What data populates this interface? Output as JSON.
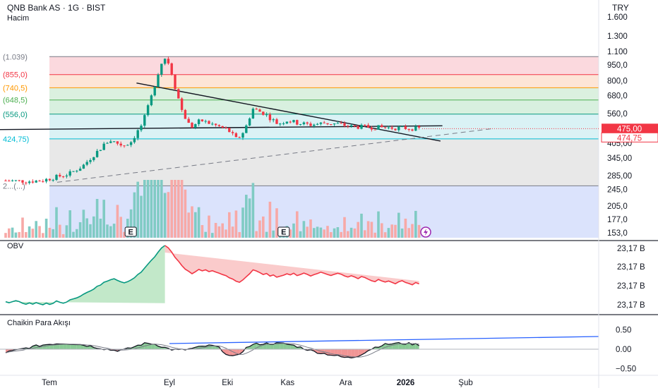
{
  "header": {
    "symbol_line": "QNB Bank AS · 1G · BIST",
    "volume_label": "Hacim",
    "currency": "TRY"
  },
  "price_axis": {
    "ticks": [
      {
        "label": "1.600",
        "value": 1600
      },
      {
        "label": "1.300",
        "value": 1300
      },
      {
        "label": "1.100",
        "value": 1100
      },
      {
        "label": "950,0",
        "value": 950
      },
      {
        "label": "800,0",
        "value": 800
      },
      {
        "label": "680,0",
        "value": 680
      },
      {
        "label": "560,0",
        "value": 560
      },
      {
        "label": "405,00",
        "value": 405
      },
      {
        "label": "345,00",
        "value": 345
      },
      {
        "label": "285,00",
        "value": 285
      },
      {
        "label": "245,0",
        "value": 245
      },
      {
        "label": "205,0",
        "value": 205
      },
      {
        "label": "177,0",
        "value": 177
      },
      {
        "label": "153,0",
        "value": 153
      }
    ],
    "current_price_label": "475,00",
    "current_price_value": 475,
    "secondary_price_label": "474,75",
    "secondary_price_value": 474.75
  },
  "fib_levels": [
    {
      "label": "(1.039)",
      "value": 1039,
      "color": "#787b86"
    },
    {
      "label": "(855,0)",
      "value": 855,
      "color": "#f23645"
    },
    {
      "label": "(740,5)",
      "value": 740.5,
      "color": "#ff9800"
    },
    {
      "label": "(648,5)",
      "value": 648.5,
      "color": "#4caf50"
    },
    {
      "label": "(556,0)",
      "value": 556,
      "color": "#089981"
    },
    {
      "label": "424,75)",
      "value": 424.75,
      "color": "#00bcd4"
    },
    {
      "label": "2...(...)",
      "value": 255,
      "color": "#787b86"
    }
  ],
  "x_axis": {
    "ticks": [
      {
        "label": "Tem",
        "date": "2025-07-01"
      },
      {
        "label": "Eyl",
        "date": "2025-09-01"
      },
      {
        "label": "Eki",
        "date": "2025-10-01"
      },
      {
        "label": "Kas",
        "date": "2025-11-01"
      },
      {
        "label": "Ara",
        "date": "2025-12-01"
      },
      {
        "label": "2026",
        "date": "2026-01-01"
      },
      {
        "label": "Şub",
        "date": "2026-02-01"
      }
    ]
  },
  "events": [
    {
      "label": "E",
      "date": "2025-08-12"
    },
    {
      "label": "E",
      "date": "2025-10-30"
    }
  ],
  "obv": {
    "label": "OBV",
    "ticks": [
      "23,17 B",
      "23,17 B",
      "23,17 B",
      "23,17 B"
    ]
  },
  "cmf": {
    "label": "Chaikin Para Akışı",
    "ticks": [
      {
        "label": "0.50",
        "value": 0.5
      },
      {
        "label": "0.00",
        "value": 0
      },
      {
        "label": "−0.50",
        "value": -0.5
      }
    ]
  },
  "colors": {
    "up": "#089981",
    "down": "#f23645",
    "volume_up": "#80cbc4",
    "volume_down": "#f7a9a7",
    "price_tag": "#f23645"
  },
  "chart_data": {
    "type": "candlestick",
    "title": "QNB Bank AS · 1G · BIST",
    "ylabel": "TRY",
    "scale": "log",
    "ylim": [
      150,
      1700
    ],
    "price_path": [
      {
        "date": "2025-06-20",
        "price": 268
      },
      {
        "date": "2025-06-27",
        "price": 270
      },
      {
        "date": "2025-07-04",
        "price": 280
      },
      {
        "date": "2025-07-11",
        "price": 290
      },
      {
        "date": "2025-07-18",
        "price": 315
      },
      {
        "date": "2025-07-25",
        "price": 365
      },
      {
        "date": "2025-08-01",
        "price": 420
      },
      {
        "date": "2025-08-08",
        "price": 395
      },
      {
        "date": "2025-08-12",
        "price": 410
      },
      {
        "date": "2025-08-18",
        "price": 500
      },
      {
        "date": "2025-08-22",
        "price": 640
      },
      {
        "date": "2025-08-26",
        "price": 860
      },
      {
        "date": "2025-08-29",
        "price": 1039
      },
      {
        "date": "2025-09-01",
        "price": 960
      },
      {
        "date": "2025-09-04",
        "price": 740
      },
      {
        "date": "2025-09-08",
        "price": 560
      },
      {
        "date": "2025-09-12",
        "price": 480
      },
      {
        "date": "2025-09-17",
        "price": 520
      },
      {
        "date": "2025-09-24",
        "price": 495
      },
      {
        "date": "2025-10-01",
        "price": 470
      },
      {
        "date": "2025-10-06",
        "price": 420
      },
      {
        "date": "2025-10-10",
        "price": 470
      },
      {
        "date": "2025-10-14",
        "price": 590
      },
      {
        "date": "2025-10-20",
        "price": 560
      },
      {
        "date": "2025-10-27",
        "price": 500
      },
      {
        "date": "2025-11-01",
        "price": 520
      },
      {
        "date": "2025-11-06",
        "price": 505
      },
      {
        "date": "2025-11-13",
        "price": 495
      },
      {
        "date": "2025-11-20",
        "price": 505
      },
      {
        "date": "2025-11-27",
        "price": 500
      },
      {
        "date": "2025-12-04",
        "price": 485
      },
      {
        "date": "2025-12-11",
        "price": 475
      }
    ],
    "trendlines": [
      {
        "name": "descending resistance",
        "from": {
          "date": "2025-08-15",
          "price": 780
        },
        "to": {
          "date": "2026-01-19",
          "price": 415
        }
      },
      {
        "name": "horizontal support",
        "from": {
          "date": "2025-06-20",
          "price": 470
        },
        "to": {
          "date": "2026-01-20",
          "price": 490
        }
      },
      {
        "name": "rising dashed line",
        "from": {
          "date": "2025-07-05",
          "price": 265
        },
        "to": {
          "date": "2026-02-15",
          "price": 475
        }
      }
    ]
  }
}
